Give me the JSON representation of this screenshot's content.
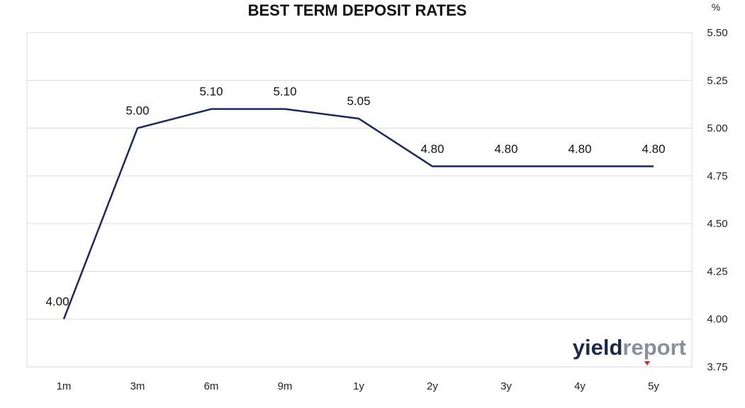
{
  "chart_data": {
    "type": "line",
    "title": "BEST TERM DEPOSIT RATES",
    "unit_label": "%",
    "categories": [
      "1m",
      "3m",
      "6m",
      "9m",
      "1y",
      "2y",
      "3y",
      "4y",
      "5y"
    ],
    "values": [
      4.0,
      5.0,
      5.1,
      5.1,
      5.05,
      4.8,
      4.8,
      4.8,
      4.8
    ],
    "data_labels": [
      "4.00",
      "5.00",
      "5.10",
      "5.10",
      "5.05",
      "4.80",
      "4.80",
      "4.80",
      "4.80"
    ],
    "ylim": [
      3.75,
      5.5
    ],
    "y_ticks": [
      "3.75",
      "4.00",
      "4.25",
      "4.50",
      "4.75",
      "5.00",
      "5.25",
      "5.50"
    ],
    "y_axis_side": "right",
    "grid": true,
    "line_color": "#1a2a5c",
    "grid_color": "#d9d9d9"
  },
  "logo": {
    "part1": "yield",
    "part2": "report",
    "accent_color": "#e02020"
  }
}
